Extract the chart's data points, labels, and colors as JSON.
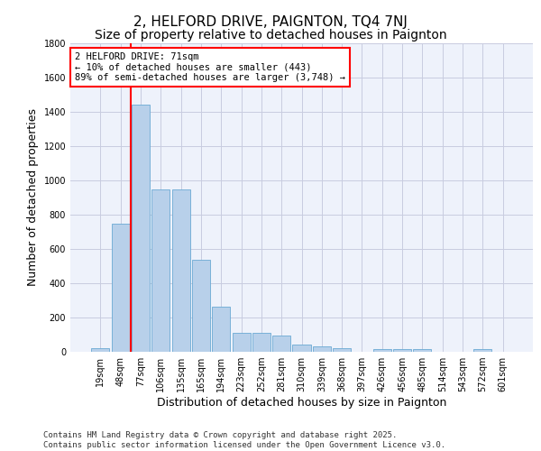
{
  "title": "2, HELFORD DRIVE, PAIGNTON, TQ4 7NJ",
  "subtitle": "Size of property relative to detached houses in Paignton",
  "xlabel": "Distribution of detached houses by size in Paignton",
  "ylabel": "Number of detached properties",
  "categories": [
    "19sqm",
    "48sqm",
    "77sqm",
    "106sqm",
    "135sqm",
    "165sqm",
    "194sqm",
    "223sqm",
    "252sqm",
    "281sqm",
    "310sqm",
    "339sqm",
    "368sqm",
    "397sqm",
    "426sqm",
    "456sqm",
    "485sqm",
    "514sqm",
    "543sqm",
    "572sqm",
    "601sqm"
  ],
  "values": [
    22,
    745,
    1440,
    945,
    945,
    535,
    265,
    110,
    110,
    95,
    40,
    30,
    22,
    0,
    15,
    18,
    15,
    0,
    0,
    18,
    0
  ],
  "bar_color": "#b8d0ea",
  "bar_edge_color": "#6aaad4",
  "background_color": "#eef2fb",
  "grid_color": "#c8cce0",
  "vline_color": "red",
  "annotation_text": "2 HELFORD DRIVE: 71sqm\n← 10% of detached houses are smaller (443)\n89% of semi-detached houses are larger (3,748) →",
  "annotation_box_color": "white",
  "annotation_box_edge_color": "red",
  "ylim": [
    0,
    1800
  ],
  "yticks": [
    0,
    200,
    400,
    600,
    800,
    1000,
    1200,
    1400,
    1600,
    1800
  ],
  "footnote": "Contains HM Land Registry data © Crown copyright and database right 2025.\nContains public sector information licensed under the Open Government Licence v3.0.",
  "title_fontsize": 11,
  "subtitle_fontsize": 10,
  "xlabel_fontsize": 9,
  "ylabel_fontsize": 9,
  "tick_fontsize": 7,
  "annot_fontsize": 7.5,
  "footnote_fontsize": 6.5
}
